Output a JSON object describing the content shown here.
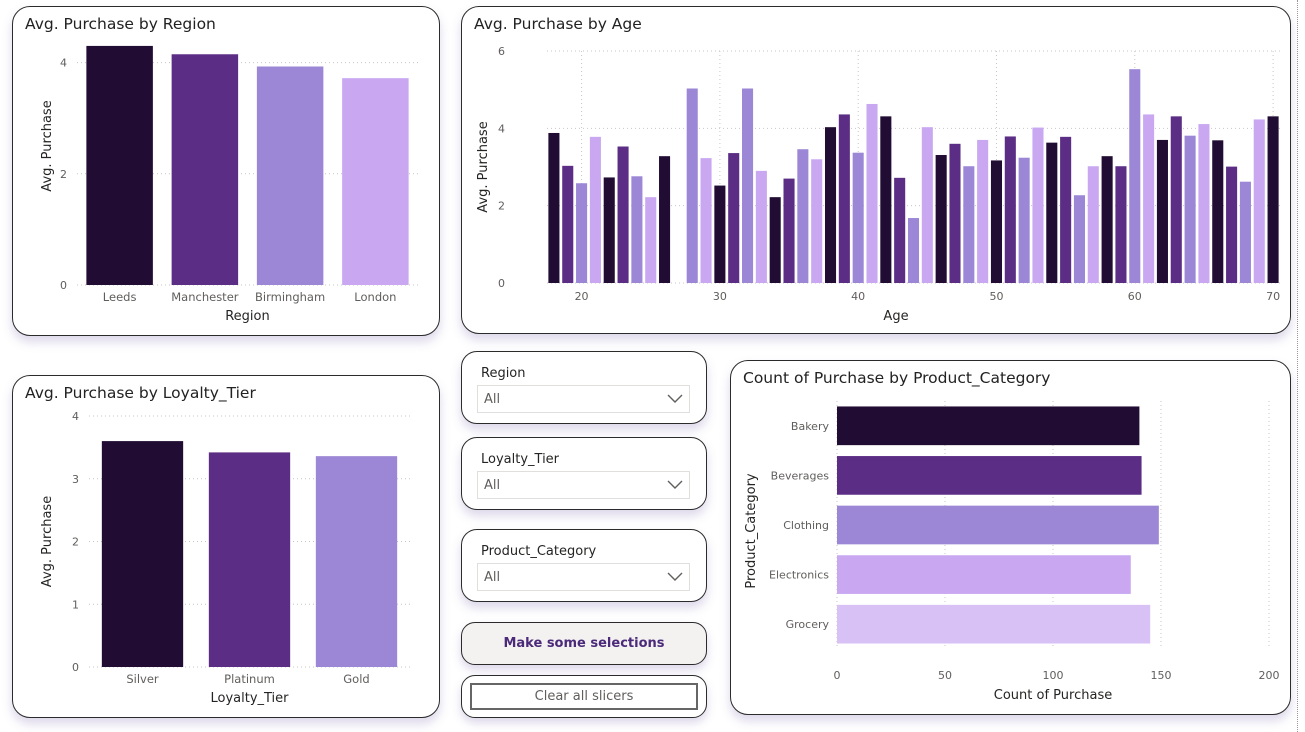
{
  "colors": {
    "c1": "#210c33",
    "c2": "#5b2d84",
    "c3": "#9b87d6",
    "c4": "#c9a8f1",
    "c5": "#d8c1f5"
  },
  "slicers": [
    {
      "label": "Region",
      "value": "All"
    },
    {
      "label": "Loyalty_Tier",
      "value": "All"
    },
    {
      "label": "Product_Category",
      "value": "All"
    }
  ],
  "buttons": {
    "make_selections": "Make some selections",
    "clear_all": "Clear all slicers"
  },
  "chart_data": [
    {
      "id": "region",
      "type": "bar",
      "title": "Avg. Purchase by Region",
      "xlabel": "Region",
      "ylabel": "Avg. Purchase",
      "categories": [
        "Leeds",
        "Manchester",
        "Birmingham",
        "London"
      ],
      "values": [
        4.3,
        4.15,
        3.93,
        3.72
      ],
      "ylim": [
        0,
        5
      ],
      "yticks": [
        0,
        2,
        4
      ],
      "grid": true
    },
    {
      "id": "age",
      "type": "bar",
      "title": "Avg. Purchase by Age",
      "xlabel": "Age",
      "ylabel": "Avg. Purchase",
      "x": [
        18,
        19,
        20,
        21,
        22,
        23,
        24,
        25,
        26,
        27,
        28,
        29,
        30,
        31,
        32,
        33,
        34,
        35,
        36,
        37,
        38,
        39,
        40,
        41,
        42,
        43,
        44,
        45,
        46,
        47,
        48,
        49,
        50,
        51,
        52,
        53,
        54,
        55,
        56,
        57,
        58,
        59,
        60,
        61,
        62,
        63,
        64,
        65,
        66,
        67,
        68,
        69,
        70
      ],
      "values": [
        3.88,
        3.03,
        2.58,
        3.78,
        2.73,
        3.53,
        2.76,
        2.22,
        3.28,
        0,
        5.03,
        3.23,
        2.52,
        3.36,
        5.03,
        2.9,
        2.22,
        2.7,
        3.46,
        3.2,
        4.03,
        4.36,
        3.37,
        4.63,
        4.31,
        2.72,
        1.68,
        4.03,
        3.31,
        3.6,
        3.02,
        3.7,
        3.17,
        3.79,
        3.24,
        4.02,
        3.63,
        3.78,
        2.27,
        3.02,
        3.28,
        3.02,
        5.53,
        4.36,
        3.7,
        4.31,
        3.81,
        4.11,
        3.69,
        3.01,
        2.62,
        4.23,
        4.31
      ],
      "xticks": [
        20,
        30,
        40,
        50,
        60,
        70
      ],
      "ylim": [
        0,
        6
      ],
      "yticks": [
        0,
        2,
        4,
        6
      ],
      "grid": true
    },
    {
      "id": "loyalty",
      "type": "bar",
      "title": "Avg. Purchase by Loyalty_Tier",
      "xlabel": "Loyalty_Tier",
      "ylabel": "Avg. Purchase",
      "categories": [
        "Silver",
        "Platinum",
        "Gold"
      ],
      "values": [
        3.6,
        3.42,
        3.36
      ],
      "ylim": [
        0,
        4
      ],
      "yticks": [
        0,
        1,
        2,
        3,
        4
      ],
      "grid": true
    },
    {
      "id": "product",
      "type": "bar",
      "orientation": "horizontal",
      "title": "Count of Purchase by Product_Category",
      "xlabel": "Count of Purchase",
      "ylabel": "Product_Category",
      "categories": [
        "Bakery",
        "Beverages",
        "Clothing",
        "Electronics",
        "Grocery"
      ],
      "values": [
        140,
        141,
        149,
        136,
        145
      ],
      "xlim": [
        0,
        200
      ],
      "xticks": [
        0,
        50,
        100,
        150,
        200
      ],
      "grid": true
    }
  ]
}
